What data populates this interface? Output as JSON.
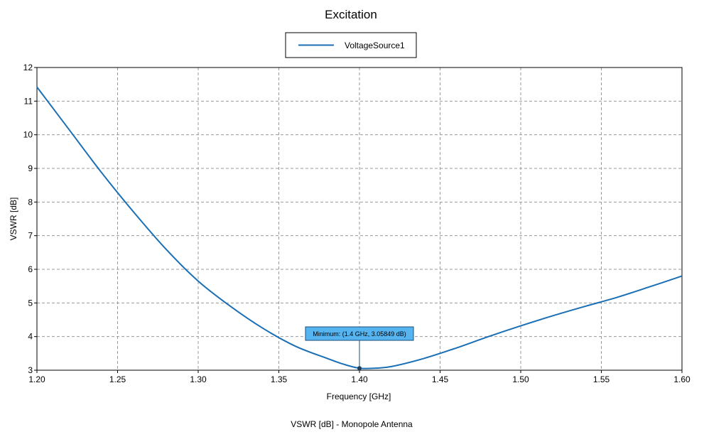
{
  "chart_data": {
    "type": "line",
    "title": "Excitation",
    "xlabel": "Frequency [GHz]",
    "ylabel": "VSWR [dB]",
    "caption": "VSWR [dB] - Monopole Antenna",
    "xlim": [
      1.2,
      1.6
    ],
    "ylim": [
      3,
      12
    ],
    "xticks": [
      "1.20",
      "1.25",
      "1.30",
      "1.35",
      "1.40",
      "1.45",
      "1.50",
      "1.55",
      "1.60"
    ],
    "yticks": [
      "3",
      "4",
      "5",
      "6",
      "7",
      "8",
      "9",
      "10",
      "11",
      "12"
    ],
    "grid": true,
    "legend_position": "top-center",
    "series": [
      {
        "name": "VoltageSource1",
        "color": "#1a6fb5",
        "x": [
          1.2,
          1.22,
          1.24,
          1.26,
          1.28,
          1.3,
          1.32,
          1.34,
          1.36,
          1.38,
          1.39,
          1.4,
          1.41,
          1.42,
          1.44,
          1.46,
          1.48,
          1.5,
          1.52,
          1.54,
          1.56,
          1.58,
          1.6
        ],
        "y": [
          11.42,
          10.15,
          8.88,
          7.7,
          6.6,
          5.65,
          4.9,
          4.25,
          3.72,
          3.35,
          3.18,
          3.06,
          3.06,
          3.11,
          3.35,
          3.66,
          4.0,
          4.32,
          4.62,
          4.9,
          5.17,
          5.48,
          5.8
        ]
      }
    ],
    "annotations": [
      {
        "text": "Minimum: (1.4 GHz, 3.05849 dB)",
        "x": 1.4,
        "y": 3.05849
      }
    ]
  }
}
